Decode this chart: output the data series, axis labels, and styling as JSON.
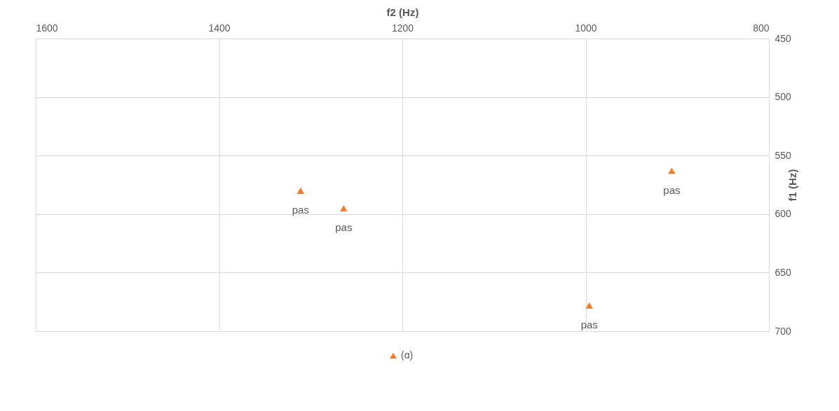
{
  "chart_data": {
    "type": "scatter",
    "xlabel": "f2 (Hz)",
    "ylabel": "f1 (Hz)",
    "x": [
      1311,
      1264,
      996,
      906
    ],
    "series": [
      {
        "name": "(ɑ)",
        "color": "#ed7d31",
        "values": [
          580,
          595,
          678,
          563
        ]
      }
    ],
    "annotations": [
      {
        "text": "pas",
        "x": 1311,
        "y": 580
      },
      {
        "text": "pas",
        "x": 1264,
        "y": 595
      },
      {
        "text": "pas",
        "x": 996,
        "y": 678
      },
      {
        "text": "pas",
        "x": 906,
        "y": 563
      }
    ],
    "xlim": [
      1600,
      800
    ],
    "xticks": [
      1600,
      1400,
      1200,
      1000,
      800
    ],
    "ylim": [
      700,
      450
    ],
    "yticks": [
      450,
      500,
      550,
      600,
      650,
      700
    ],
    "grid": true,
    "legend": "bottom",
    "marker": "triangle"
  }
}
